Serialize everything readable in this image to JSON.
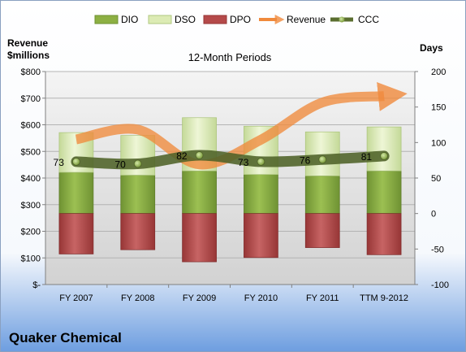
{
  "chart_data": {
    "type": "bar",
    "title": "12-Month Periods",
    "company": "Quaker Chemical",
    "left_axis_label": [
      "Revenue",
      "$millions"
    ],
    "right_axis_label": "Days",
    "categories": [
      "FY 2007",
      "FY 2008",
      "FY 2009",
      "FY 2010",
      "FY 2011",
      "TTM 9-2012"
    ],
    "left_ticks": [
      "$-",
      "$100",
      "$200",
      "$300",
      "$400",
      "$500",
      "$600",
      "$700",
      "$800"
    ],
    "left_ylim": [
      0,
      800
    ],
    "right_ticks": [
      "-100",
      "-50",
      "0",
      "50",
      "100",
      "150",
      "200"
    ],
    "right_ylim": [
      -100,
      200
    ],
    "legend": [
      "DIO",
      "DSO",
      "DPO",
      "Revenue",
      "CCC"
    ],
    "colors": {
      "DIO": "#8db043",
      "DSO": "#dcebb4",
      "DPO": "#b54a4a",
      "Revenue": "#f08a3c",
      "CCC": "#5a6e30"
    },
    "series": [
      {
        "name": "DIO",
        "values": [
          58,
          54,
          60,
          55,
          53,
          60
        ]
      },
      {
        "name": "DSO",
        "values": [
          56,
          56,
          75,
          68,
          62,
          62
        ]
      },
      {
        "name": "DPO",
        "values": [
          -57,
          -51,
          -68,
          -62,
          -48,
          -58
        ]
      },
      {
        "name": "Revenue",
        "axis": "left",
        "values": [
          545,
          582,
          451,
          544,
          684,
          708
        ]
      },
      {
        "name": "CCC",
        "values": [
          73,
          70,
          82,
          73,
          76,
          81
        ]
      }
    ],
    "ccc_labels": [
      "73",
      "70",
      "82",
      "73",
      "76",
      "81"
    ]
  }
}
